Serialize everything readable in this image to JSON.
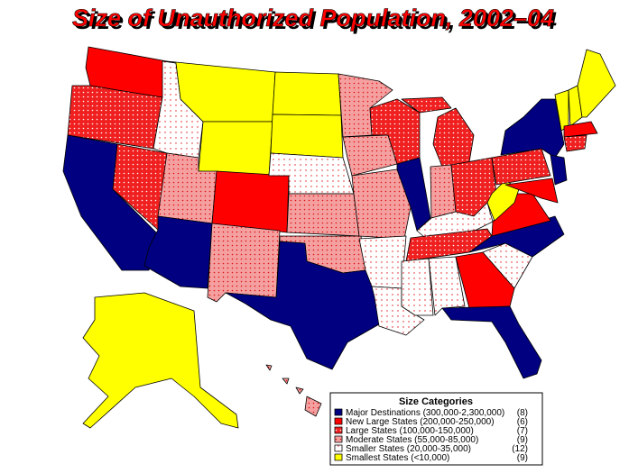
{
  "header": {
    "title": "Size of Unauthorized Population, 2002–04"
  },
  "legend": {
    "title": "Size Categories",
    "items": [
      {
        "label": "Major Destinations (300,000-2,300,000)",
        "count": "(8)"
      },
      {
        "label": "New Large States (200,000-250,000)",
        "count": "(6)"
      },
      {
        "label": "Large States (100,000-150,000)",
        "count": "(7)"
      },
      {
        "label": "Moderate States (55,000-85,000)",
        "count": "(9)"
      },
      {
        "label": "Smaller States (20,000-35,000)",
        "count": "(12)"
      },
      {
        "label": "Smallest States (<10,000)",
        "count": "(9)"
      }
    ]
  }
}
